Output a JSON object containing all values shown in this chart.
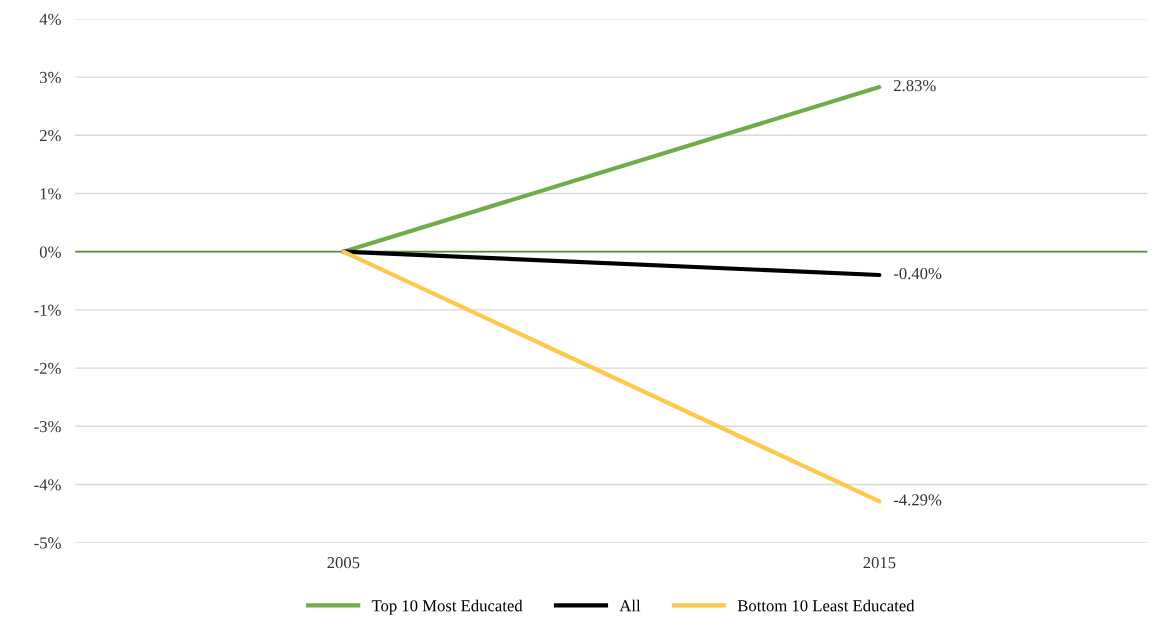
{
  "chart_data": {
    "type": "line",
    "categories": [
      "2005",
      "2015"
    ],
    "series": [
      {
        "name": "Top 10 Most Educated",
        "color": "#70ad47",
        "values": [
          0,
          2.83
        ],
        "value_labels": [
          null,
          "2.83%"
        ]
      },
      {
        "name": "All",
        "color": "#000000",
        "values": [
          0,
          -0.4
        ],
        "value_labels": [
          null,
          "-0.40%"
        ]
      },
      {
        "name": "Bottom 10 Least Educated",
        "color": "#ffc84a",
        "values": [
          0,
          -4.29
        ],
        "value_labels": [
          null,
          "-4.29%"
        ]
      }
    ],
    "ylim": [
      -5,
      4
    ],
    "yticks": [
      {
        "value": -5,
        "label": "-5%"
      },
      {
        "value": -4,
        "label": "-4%"
      },
      {
        "value": -3,
        "label": "-3%"
      },
      {
        "value": -2,
        "label": "-2%"
      },
      {
        "value": -1,
        "label": "-1%"
      },
      {
        "value": 0,
        "label": "0%"
      },
      {
        "value": 1,
        "label": "1%"
      },
      {
        "value": 2,
        "label": "2%"
      },
      {
        "value": 3,
        "label": "3%"
      },
      {
        "value": 4,
        "label": "4%"
      }
    ],
    "ref_lines": [
      {
        "axis": "y",
        "value": 0,
        "color": "#5b8c3e"
      }
    ],
    "grid": "y",
    "legend": "bottom",
    "marker": "none",
    "line_style": "solid"
  }
}
